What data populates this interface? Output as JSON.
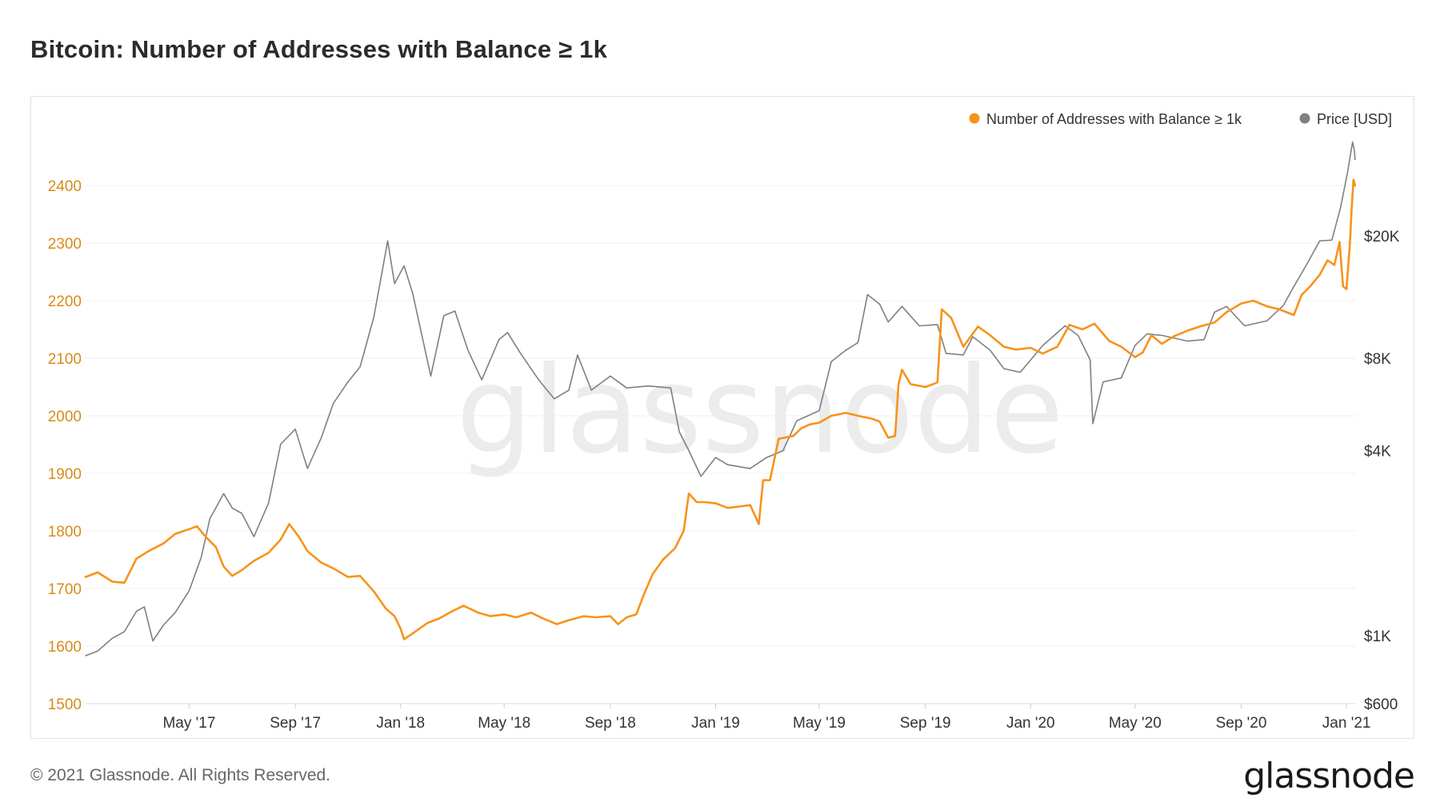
{
  "page": {
    "title": "Bitcoin: Number of Addresses with Balance ≥ 1k",
    "copyright": "© 2021 Glassnode. All Rights Reserved.",
    "logo_text": "glassnode",
    "watermark_text": "glassnode"
  },
  "chart_data": {
    "type": "line",
    "title": "Bitcoin: Number of Addresses with Balance ≥ 1k",
    "legend_position": "top-right",
    "grid": true,
    "colors": {
      "addresses": "#f7931a",
      "price": "#808080",
      "left_axis_text": "#d98a1c",
      "right_axis_text": "#333333"
    },
    "x_axis": {
      "range": [
        "2017-01-01",
        "2021-01-12"
      ],
      "ticks": [
        {
          "label": "May '17",
          "date": "2017-05-01"
        },
        {
          "label": "Sep '17",
          "date": "2017-09-01"
        },
        {
          "label": "Jan '18",
          "date": "2018-01-01"
        },
        {
          "label": "May '18",
          "date": "2018-05-01"
        },
        {
          "label": "Sep '18",
          "date": "2018-09-01"
        },
        {
          "label": "Jan '19",
          "date": "2019-01-01"
        },
        {
          "label": "May '19",
          "date": "2019-05-01"
        },
        {
          "label": "Sep '19",
          "date": "2019-09-01"
        },
        {
          "label": "Jan '20",
          "date": "2020-01-01"
        },
        {
          "label": "May '20",
          "date": "2020-05-01"
        },
        {
          "label": "Sep '20",
          "date": "2020-09-01"
        },
        {
          "label": "Jan '21",
          "date": "2021-01-01"
        }
      ]
    },
    "y_left": {
      "range": [
        1500,
        2500
      ],
      "ticks": [
        1500,
        1600,
        1700,
        1800,
        1900,
        2000,
        2100,
        2200,
        2300,
        2400
      ]
    },
    "y_right": {
      "scale": "log",
      "range": [
        600,
        45000
      ],
      "ticks": [
        {
          "label": "$600",
          "value": 600
        },
        {
          "label": "$1K",
          "value": 1000
        },
        {
          "label": "$4K",
          "value": 4000
        },
        {
          "label": "$8K",
          "value": 8000
        },
        {
          "label": "$20K",
          "value": 20000
        }
      ]
    },
    "series": [
      {
        "name": "Number of Addresses with Balance ≥ 1k",
        "axis": "left",
        "points": [
          [
            "2017-01-01",
            1720
          ],
          [
            "2017-01-15",
            1728
          ],
          [
            "2017-02-01",
            1712
          ],
          [
            "2017-02-15",
            1710
          ],
          [
            "2017-03-01",
            1752
          ],
          [
            "2017-03-15",
            1765
          ],
          [
            "2017-04-01",
            1778
          ],
          [
            "2017-04-15",
            1795
          ],
          [
            "2017-05-01",
            1803
          ],
          [
            "2017-05-10",
            1808
          ],
          [
            "2017-05-20",
            1790
          ],
          [
            "2017-06-01",
            1772
          ],
          [
            "2017-06-10",
            1738
          ],
          [
            "2017-06-20",
            1722
          ],
          [
            "2017-07-01",
            1732
          ],
          [
            "2017-07-15",
            1748
          ],
          [
            "2017-08-01",
            1762
          ],
          [
            "2017-08-15",
            1785
          ],
          [
            "2017-08-25",
            1812
          ],
          [
            "2017-09-05",
            1790
          ],
          [
            "2017-09-15",
            1765
          ],
          [
            "2017-10-01",
            1745
          ],
          [
            "2017-10-15",
            1735
          ],
          [
            "2017-11-01",
            1720
          ],
          [
            "2017-11-15",
            1722
          ],
          [
            "2017-12-01",
            1695
          ],
          [
            "2017-12-15",
            1665
          ],
          [
            "2017-12-25",
            1652
          ],
          [
            "2018-01-01",
            1630
          ],
          [
            "2018-01-05",
            1612
          ],
          [
            "2018-01-15",
            1622
          ],
          [
            "2018-02-01",
            1640
          ],
          [
            "2018-02-15",
            1648
          ],
          [
            "2018-03-01",
            1660
          ],
          [
            "2018-03-15",
            1670
          ],
          [
            "2018-04-01",
            1658
          ],
          [
            "2018-04-15",
            1652
          ],
          [
            "2018-05-01",
            1655
          ],
          [
            "2018-05-15",
            1650
          ],
          [
            "2018-06-01",
            1658
          ],
          [
            "2018-06-15",
            1648
          ],
          [
            "2018-07-01",
            1638
          ],
          [
            "2018-07-15",
            1645
          ],
          [
            "2018-08-01",
            1652
          ],
          [
            "2018-08-15",
            1650
          ],
          [
            "2018-09-01",
            1652
          ],
          [
            "2018-09-10",
            1638
          ],
          [
            "2018-09-20",
            1650
          ],
          [
            "2018-10-01",
            1655
          ],
          [
            "2018-10-10",
            1690
          ],
          [
            "2018-10-20",
            1725
          ],
          [
            "2018-11-01",
            1750
          ],
          [
            "2018-11-15",
            1770
          ],
          [
            "2018-11-25",
            1800
          ],
          [
            "2018-12-01",
            1865
          ],
          [
            "2018-12-10",
            1850
          ],
          [
            "2018-12-20",
            1850
          ],
          [
            "2019-01-01",
            1848
          ],
          [
            "2019-01-15",
            1840
          ],
          [
            "2019-02-01",
            1843
          ],
          [
            "2019-02-10",
            1845
          ],
          [
            "2019-02-20",
            1812
          ],
          [
            "2019-02-25",
            1888
          ],
          [
            "2019-03-05",
            1888
          ],
          [
            "2019-03-15",
            1960
          ],
          [
            "2019-04-01",
            1965
          ],
          [
            "2019-04-10",
            1978
          ],
          [
            "2019-04-20",
            1985
          ],
          [
            "2019-05-01",
            1988
          ],
          [
            "2019-05-15",
            2000
          ],
          [
            "2019-06-01",
            2005
          ],
          [
            "2019-06-15",
            2000
          ],
          [
            "2019-07-01",
            1995
          ],
          [
            "2019-07-10",
            1990
          ],
          [
            "2019-07-20",
            1962
          ],
          [
            "2019-07-28",
            1965
          ],
          [
            "2019-08-01",
            2055
          ],
          [
            "2019-08-05",
            2080
          ],
          [
            "2019-08-15",
            2055
          ],
          [
            "2019-09-01",
            2050
          ],
          [
            "2019-09-10",
            2055
          ],
          [
            "2019-09-15",
            2058
          ],
          [
            "2019-09-20",
            2185
          ],
          [
            "2019-10-01",
            2170
          ],
          [
            "2019-10-15",
            2120
          ],
          [
            "2019-11-01",
            2155
          ],
          [
            "2019-11-15",
            2140
          ],
          [
            "2019-12-01",
            2120
          ],
          [
            "2019-12-15",
            2115
          ],
          [
            "2020-01-01",
            2118
          ],
          [
            "2020-01-15",
            2108
          ],
          [
            "2020-02-01",
            2120
          ],
          [
            "2020-02-15",
            2158
          ],
          [
            "2020-03-01",
            2150
          ],
          [
            "2020-03-15",
            2160
          ],
          [
            "2020-04-01",
            2130
          ],
          [
            "2020-04-15",
            2120
          ],
          [
            "2020-05-01",
            2102
          ],
          [
            "2020-05-10",
            2110
          ],
          [
            "2020-05-20",
            2140
          ],
          [
            "2020-06-01",
            2125
          ],
          [
            "2020-06-15",
            2138
          ],
          [
            "2020-07-01",
            2148
          ],
          [
            "2020-07-15",
            2155
          ],
          [
            "2020-08-01",
            2162
          ],
          [
            "2020-08-15",
            2180
          ],
          [
            "2020-09-01",
            2195
          ],
          [
            "2020-09-15",
            2200
          ],
          [
            "2020-10-01",
            2190
          ],
          [
            "2020-10-15",
            2185
          ],
          [
            "2020-11-01",
            2175
          ],
          [
            "2020-11-10",
            2210
          ],
          [
            "2020-11-20",
            2225
          ],
          [
            "2020-12-01",
            2245
          ],
          [
            "2020-12-10",
            2270
          ],
          [
            "2020-12-18",
            2262
          ],
          [
            "2020-12-24",
            2302
          ],
          [
            "2020-12-28",
            2225
          ],
          [
            "2021-01-01",
            2220
          ],
          [
            "2021-01-03",
            2260
          ],
          [
            "2021-01-05",
            2300
          ],
          [
            "2021-01-07",
            2360
          ],
          [
            "2021-01-09",
            2410
          ],
          [
            "2021-01-11",
            2400
          ]
        ]
      },
      {
        "name": "Price [USD]",
        "axis": "right",
        "points": [
          [
            "2017-01-01",
            860
          ],
          [
            "2017-01-15",
            890
          ],
          [
            "2017-02-01",
            980
          ],
          [
            "2017-02-15",
            1030
          ],
          [
            "2017-03-01",
            1200
          ],
          [
            "2017-03-10",
            1240
          ],
          [
            "2017-03-20",
            960
          ],
          [
            "2017-04-01",
            1080
          ],
          [
            "2017-04-15",
            1190
          ],
          [
            "2017-05-01",
            1400
          ],
          [
            "2017-05-15",
            1800
          ],
          [
            "2017-05-25",
            2400
          ],
          [
            "2017-06-10",
            2900
          ],
          [
            "2017-06-20",
            2600
          ],
          [
            "2017-07-01",
            2500
          ],
          [
            "2017-07-15",
            2100
          ],
          [
            "2017-08-01",
            2700
          ],
          [
            "2017-08-15",
            4200
          ],
          [
            "2017-09-01",
            4700
          ],
          [
            "2017-09-15",
            3500
          ],
          [
            "2017-10-01",
            4400
          ],
          [
            "2017-10-15",
            5700
          ],
          [
            "2017-11-01",
            6700
          ],
          [
            "2017-11-15",
            7500
          ],
          [
            "2017-12-01",
            10900
          ],
          [
            "2017-12-10",
            15000
          ],
          [
            "2017-12-17",
            19300
          ],
          [
            "2017-12-25",
            14000
          ],
          [
            "2018-01-05",
            16000
          ],
          [
            "2018-01-15",
            13000
          ],
          [
            "2018-02-05",
            7000
          ],
          [
            "2018-02-20",
            11000
          ],
          [
            "2018-03-05",
            11400
          ],
          [
            "2018-03-20",
            8500
          ],
          [
            "2018-04-05",
            6800
          ],
          [
            "2018-04-25",
            9200
          ],
          [
            "2018-05-05",
            9700
          ],
          [
            "2018-05-20",
            8300
          ],
          [
            "2018-06-10",
            6800
          ],
          [
            "2018-06-28",
            5900
          ],
          [
            "2018-07-15",
            6300
          ],
          [
            "2018-07-25",
            8200
          ],
          [
            "2018-08-10",
            6300
          ],
          [
            "2018-09-01",
            7000
          ],
          [
            "2018-09-20",
            6400
          ],
          [
            "2018-10-15",
            6500
          ],
          [
            "2018-11-10",
            6400
          ],
          [
            "2018-11-20",
            4600
          ],
          [
            "2018-12-01",
            4000
          ],
          [
            "2018-12-15",
            3300
          ],
          [
            "2019-01-01",
            3800
          ],
          [
            "2019-01-15",
            3600
          ],
          [
            "2019-02-10",
            3500
          ],
          [
            "2019-03-01",
            3800
          ],
          [
            "2019-03-20",
            4000
          ],
          [
            "2019-04-05",
            5000
          ],
          [
            "2019-05-01",
            5400
          ],
          [
            "2019-05-15",
            7800
          ],
          [
            "2019-06-01",
            8500
          ],
          [
            "2019-06-15",
            9000
          ],
          [
            "2019-06-26",
            12900
          ],
          [
            "2019-07-10",
            12000
          ],
          [
            "2019-07-20",
            10500
          ],
          [
            "2019-08-05",
            11800
          ],
          [
            "2019-08-25",
            10200
          ],
          [
            "2019-09-15",
            10300
          ],
          [
            "2019-09-25",
            8300
          ],
          [
            "2019-10-15",
            8200
          ],
          [
            "2019-10-26",
            9400
          ],
          [
            "2019-11-15",
            8500
          ],
          [
            "2019-12-01",
            7400
          ],
          [
            "2019-12-20",
            7200
          ],
          [
            "2020-01-15",
            8800
          ],
          [
            "2020-02-10",
            10200
          ],
          [
            "2020-02-25",
            9500
          ],
          [
            "2020-03-10",
            7900
          ],
          [
            "2020-03-13",
            4900
          ],
          [
            "2020-03-25",
            6700
          ],
          [
            "2020-04-15",
            6900
          ],
          [
            "2020-05-01",
            8800
          ],
          [
            "2020-05-15",
            9600
          ],
          [
            "2020-06-01",
            9500
          ],
          [
            "2020-07-01",
            9100
          ],
          [
            "2020-07-20",
            9200
          ],
          [
            "2020-08-01",
            11300
          ],
          [
            "2020-08-15",
            11800
          ],
          [
            "2020-09-05",
            10200
          ],
          [
            "2020-10-01",
            10600
          ],
          [
            "2020-10-20",
            11900
          ],
          [
            "2020-11-01",
            13700
          ],
          [
            "2020-11-15",
            16000
          ],
          [
            "2020-12-01",
            19300
          ],
          [
            "2020-12-15",
            19400
          ],
          [
            "2020-12-25",
            24700
          ],
          [
            "2021-01-02",
            32000
          ],
          [
            "2021-01-08",
            40500
          ],
          [
            "2021-01-10",
            38200
          ],
          [
            "2021-01-11",
            35500
          ]
        ]
      }
    ]
  }
}
